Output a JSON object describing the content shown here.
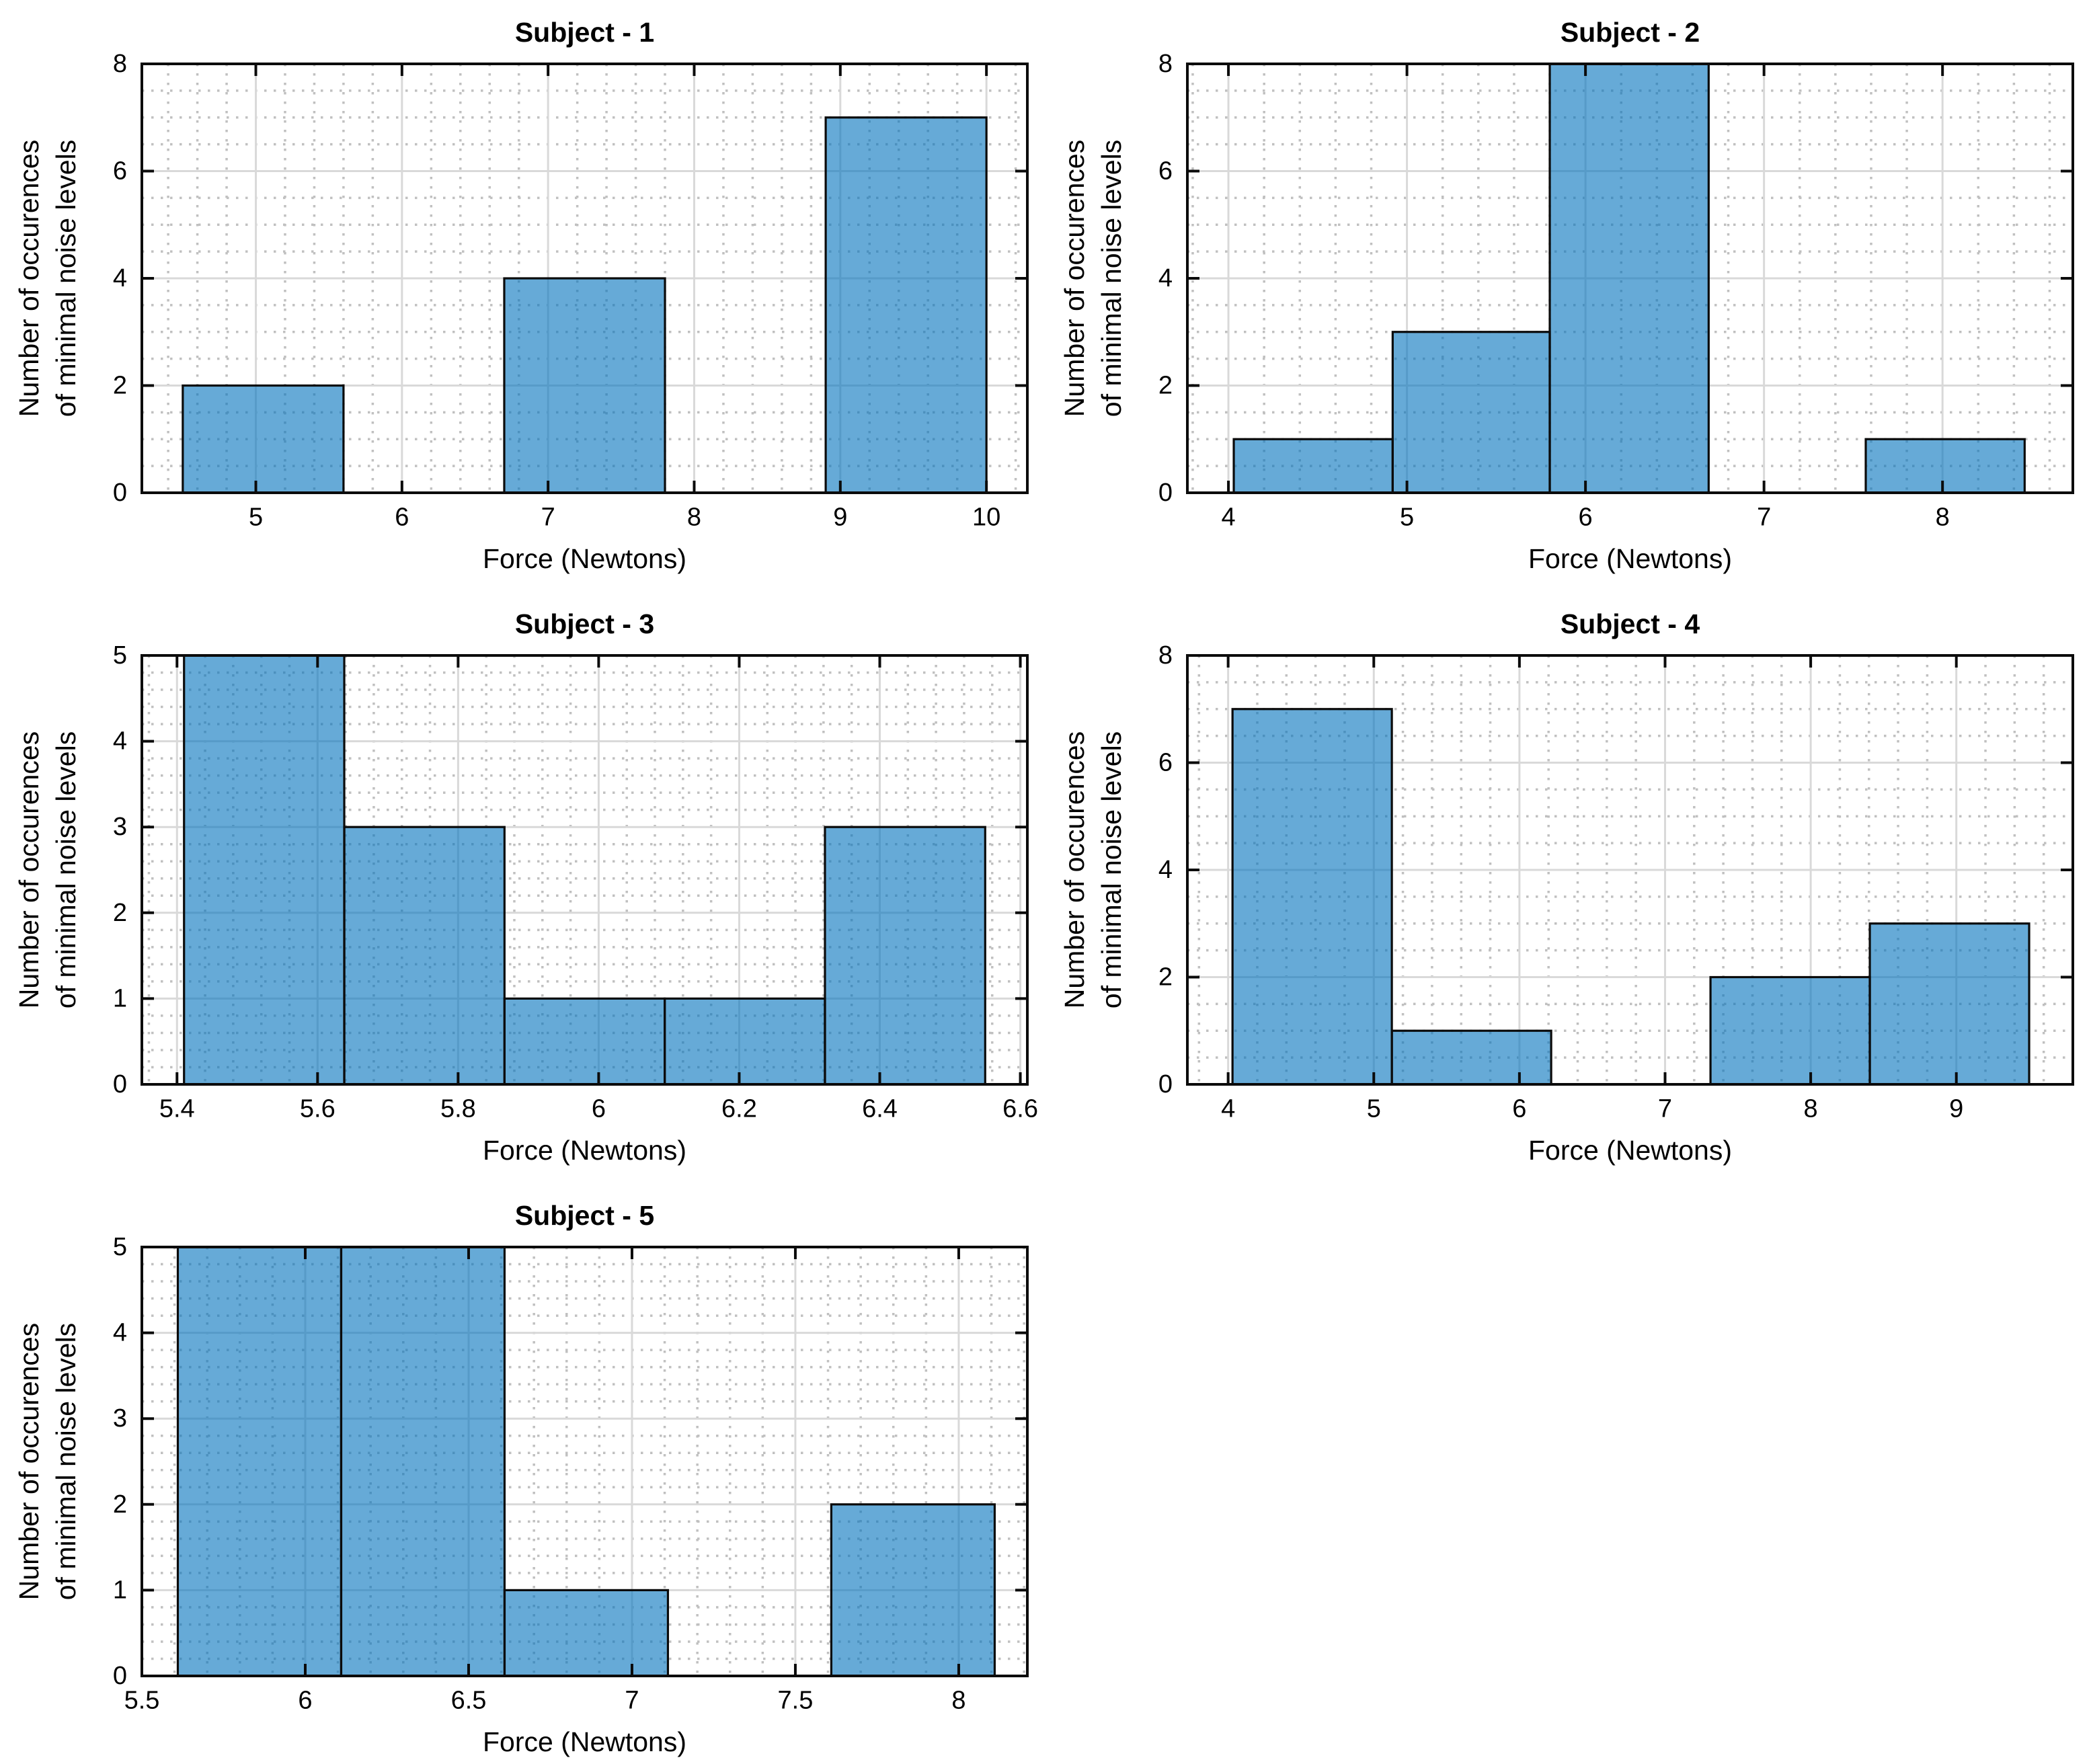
{
  "figure": {
    "background": "#ffffff",
    "bar_fill": "#0072BD",
    "bar_fill_opacity": 0.6,
    "bar_edge_color": "#0b0b0b",
    "axis_color": "#0b0b0b",
    "text_color": "#000000",
    "major_grid_color": "#d9d9d9",
    "minor_grid_color": "#c0c0c0"
  },
  "chart_data": [
    {
      "type": "bar",
      "title": "Subject - 1",
      "xlabel": "Force (Newtons)",
      "ylabel_lines": [
        "Number of occurences",
        "of minimal noise levels"
      ],
      "row": 0,
      "col": 0,
      "xlim": [
        4.22,
        10.28
      ],
      "ylim": [
        0,
        8
      ],
      "xticks": [
        5,
        6,
        7,
        8,
        9,
        10
      ],
      "xtick_labels": [
        "5",
        "6",
        "7",
        "8",
        "9",
        "10"
      ],
      "yticks": [
        0,
        2,
        4,
        6,
        8
      ],
      "ytick_labels": [
        "0",
        "2",
        "4",
        "6",
        "8"
      ],
      "x_minor_step": 0.2,
      "y_minor_step": 0.5,
      "bin_edges": [
        4.5,
        5.6,
        6.7,
        7.8,
        8.9,
        10.0
      ],
      "counts": [
        2,
        0,
        4,
        0,
        7
      ],
      "grid": "on",
      "legend": "none"
    },
    {
      "type": "bar",
      "title": "Subject - 2",
      "xlabel": "Force (Newtons)",
      "ylabel_lines": [
        "Number of occurences",
        "of minimal noise levels"
      ],
      "row": 0,
      "col": 1,
      "xlim": [
        3.77,
        8.73
      ],
      "ylim": [
        0,
        8
      ],
      "xticks": [
        4,
        5,
        6,
        7,
        8
      ],
      "xtick_labels": [
        "4",
        "5",
        "6",
        "7",
        "8"
      ],
      "yticks": [
        0,
        2,
        4,
        6,
        8
      ],
      "ytick_labels": [
        "0",
        "2",
        "4",
        "6",
        "8"
      ],
      "x_minor_step": 0.2,
      "y_minor_step": 0.5,
      "bin_edges": [
        4.03,
        4.92,
        5.8,
        6.69,
        7.57,
        8.46
      ],
      "counts": [
        1,
        3,
        8,
        0,
        1
      ],
      "grid": "on",
      "legend": "none"
    },
    {
      "type": "bar",
      "title": "Subject - 3",
      "xlabel": "Force (Newtons)",
      "ylabel_lines": [
        "Number of occurences",
        "of minimal noise levels"
      ],
      "row": 1,
      "col": 0,
      "xlim": [
        5.35,
        6.61
      ],
      "ylim": [
        0,
        5
      ],
      "xticks": [
        5.4,
        5.6,
        5.8,
        6,
        6.2,
        6.4,
        6.6
      ],
      "xtick_labels": [
        "5.4",
        "5.6",
        "5.8",
        "6",
        "6.2",
        "6.4",
        "6.6"
      ],
      "yticks": [
        0,
        1,
        2,
        3,
        4,
        5
      ],
      "ytick_labels": [
        "0",
        "1",
        "2",
        "3",
        "4",
        "5"
      ],
      "x_minor_step": 0.04,
      "y_minor_step": 0.2,
      "bin_edges": [
        5.41,
        5.638,
        5.866,
        6.094,
        6.322,
        6.55
      ],
      "counts": [
        5,
        3,
        1,
        1,
        3
      ],
      "grid": "on",
      "legend": "none"
    },
    {
      "type": "bar",
      "title": "Subject - 4",
      "xlabel": "Force (Newtons)",
      "ylabel_lines": [
        "Number of occurences",
        "of minimal noise levels"
      ],
      "row": 1,
      "col": 1,
      "xlim": [
        3.72,
        9.8
      ],
      "ylim": [
        0,
        8
      ],
      "xticks": [
        4,
        5,
        6,
        7,
        8,
        9
      ],
      "xtick_labels": [
        "4",
        "5",
        "6",
        "7",
        "8",
        "9"
      ],
      "yticks": [
        0,
        2,
        4,
        6,
        8
      ],
      "ytick_labels": [
        "0",
        "2",
        "4",
        "6",
        "8"
      ],
      "x_minor_step": 0.2,
      "y_minor_step": 0.5,
      "bin_edges": [
        4.03,
        5.124,
        6.218,
        7.312,
        8.406,
        9.5
      ],
      "counts": [
        7,
        1,
        0,
        2,
        3
      ],
      "grid": "on",
      "legend": "none"
    },
    {
      "type": "bar",
      "title": "Subject - 5",
      "xlabel": "Force (Newtons)",
      "ylabel_lines": [
        "Number of occurences",
        "of minimal noise levels"
      ],
      "row": 2,
      "col": 0,
      "xlim": [
        5.5,
        8.21
      ],
      "ylim": [
        0,
        5
      ],
      "xticks": [
        5.5,
        6,
        6.5,
        7,
        7.5,
        8
      ],
      "xtick_labels": [
        "5.5",
        "6",
        "6.5",
        "7",
        "7.5",
        "8"
      ],
      "yticks": [
        0,
        1,
        2,
        3,
        4,
        5
      ],
      "ytick_labels": [
        "0",
        "1",
        "2",
        "3",
        "4",
        "5"
      ],
      "x_minor_step": 0.1,
      "y_minor_step": 0.2,
      "bin_edges": [
        5.61,
        6.11,
        6.61,
        7.11,
        7.61,
        8.11
      ],
      "counts": [
        5,
        5,
        1,
        0,
        2
      ],
      "grid": "on",
      "legend": "none"
    }
  ]
}
